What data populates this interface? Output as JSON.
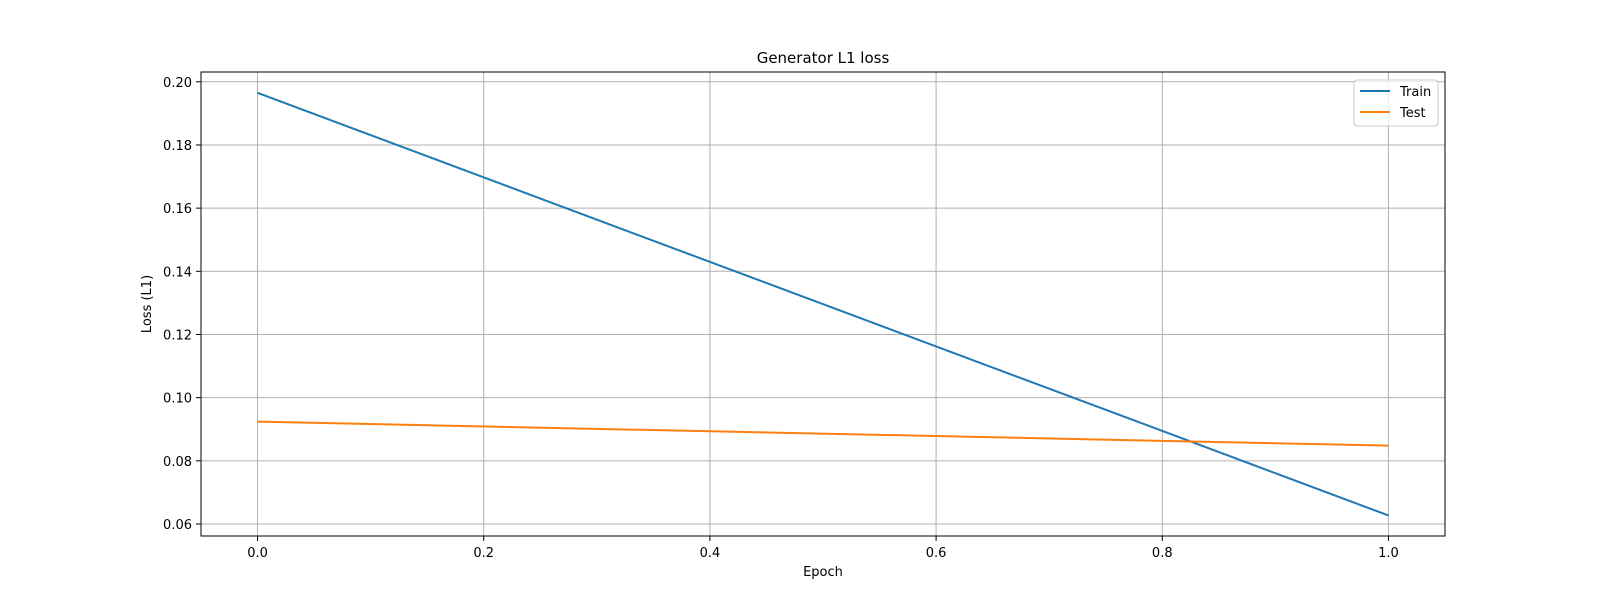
{
  "chart_data": {
    "type": "line",
    "title": "Generator L1 loss",
    "xlabel": "Epoch",
    "ylabel": "Loss (L1)",
    "x": [
      0,
      1
    ],
    "xlim": [
      -0.05,
      1.05
    ],
    "ylim": [
      0.0562,
      0.2031
    ],
    "xticks": [
      0.0,
      0.2,
      0.4,
      0.6,
      0.8,
      1.0
    ],
    "xtick_labels": [
      "0.0",
      "0.2",
      "0.4",
      "0.6",
      "0.8",
      "1.0"
    ],
    "yticks": [
      0.06,
      0.08,
      0.1,
      0.12,
      0.14,
      0.16,
      0.18,
      0.2
    ],
    "ytick_labels": [
      "0.06",
      "0.08",
      "0.10",
      "0.12",
      "0.14",
      "0.16",
      "0.18",
      "0.20"
    ],
    "grid": true,
    "legend_position": "top-right",
    "series": [
      {
        "name": "Train",
        "color": "#1f77b4",
        "values": [
          0.1965,
          0.0627
        ]
      },
      {
        "name": "Test",
        "color": "#ff7f0e",
        "values": [
          0.0924,
          0.0848
        ]
      }
    ]
  }
}
